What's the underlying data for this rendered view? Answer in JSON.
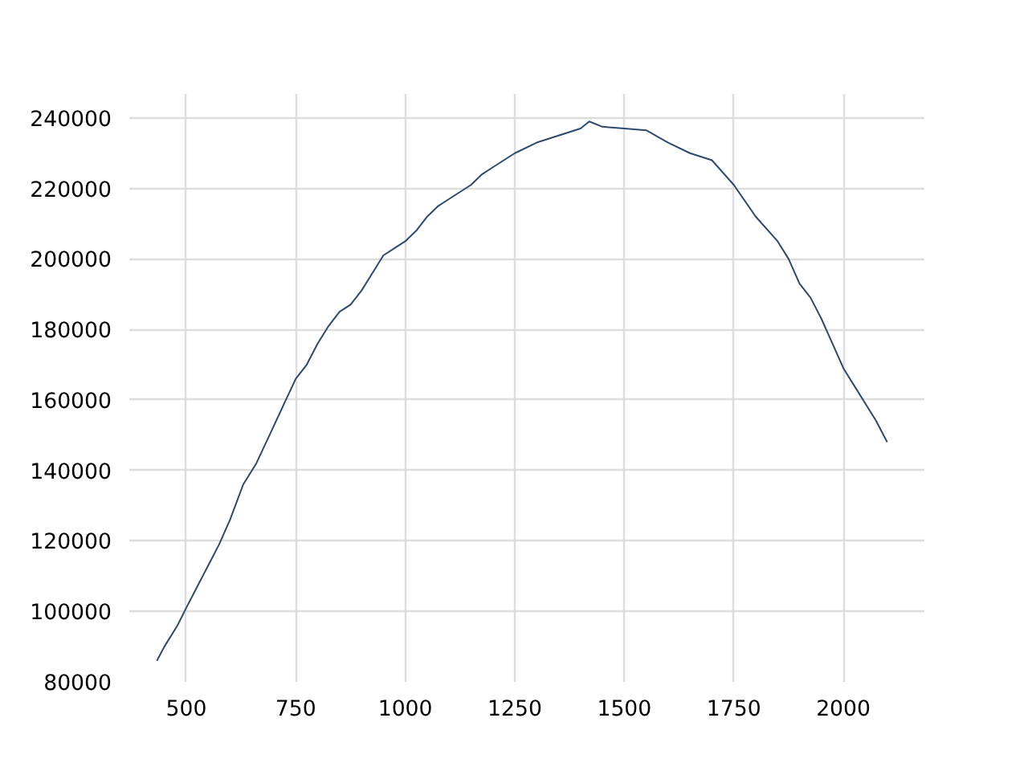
{
  "chart_data": {
    "type": "line",
    "x": [
      433,
      450,
      480,
      500,
      525,
      550,
      575,
      600,
      630,
      660,
      690,
      720,
      750,
      775,
      800,
      825,
      850,
      875,
      900,
      925,
      950,
      975,
      1000,
      1025,
      1050,
      1075,
      1100,
      1125,
      1150,
      1175,
      1200,
      1250,
      1300,
      1350,
      1400,
      1420,
      1450,
      1500,
      1550,
      1600,
      1650,
      1700,
      1750,
      1800,
      1850,
      1875,
      1900,
      1925,
      1950,
      1975,
      2000,
      2025,
      2050,
      2075,
      2100
    ],
    "series": [
      {
        "color": "#2b4a6e",
        "values": [
          86000,
          90000,
          96000,
          101000,
          107000,
          113000,
          119000,
          126000,
          136000,
          142000,
          150000,
          158000,
          166000,
          170000,
          176000,
          181000,
          185000,
          187000,
          191000,
          196000,
          201000,
          203000,
          205000,
          208000,
          212000,
          215000,
          217000,
          219000,
          221000,
          224000,
          226000,
          230000,
          233000,
          235000,
          237000,
          239000,
          237500,
          237000,
          236500,
          233000,
          230000,
          228000,
          221000,
          212000,
          205000,
          200000,
          193000,
          189000,
          183000,
          176000,
          169000,
          164000,
          159000,
          154000,
          148000
        ]
      }
    ],
    "xlim": [
      370,
      2185
    ],
    "ylim": [
      80000,
      246800
    ],
    "xticks": [
      500,
      750,
      1000,
      1250,
      1500,
      1750,
      2000
    ],
    "yticks": [
      80000,
      100000,
      120000,
      140000,
      160000,
      180000,
      200000,
      220000,
      240000
    ],
    "grid": true
  }
}
